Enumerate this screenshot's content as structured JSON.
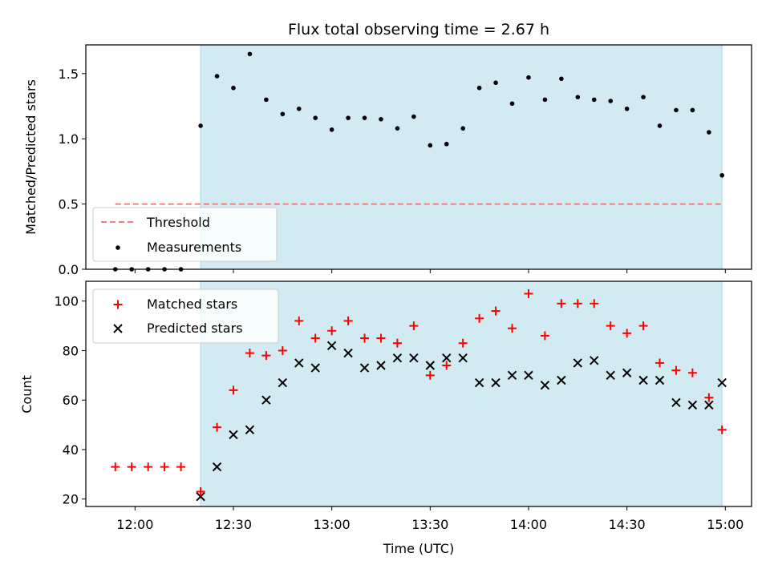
{
  "figure": {
    "title": "Flux total observing time = 2.67 h",
    "xlabel": "Time (UTC)"
  },
  "colors": {
    "shade": "#add8e6",
    "threshold": "#f08080",
    "matched": "#ff0000",
    "predicted": "#000000",
    "measurement": "#000000"
  },
  "chart_data": [
    {
      "type": "scatter",
      "name": "ratio-panel",
      "ylabel": "Matched/Predicted stars",
      "ylim": [
        0,
        1.72
      ],
      "yticks": [
        0.0,
        0.5,
        1.0,
        1.5
      ],
      "ytick_labels": [
        "0.0",
        "0.5",
        "1.0",
        "1.5"
      ],
      "shaded_region": {
        "x": [
          "12:20",
          "14:59"
        ]
      },
      "threshold": {
        "name": "Threshold",
        "value": 0.5,
        "x": [
          "11:54",
          "14:59"
        ]
      },
      "legend": {
        "placement": "lower-left",
        "entries": [
          "Threshold",
          "Measurements"
        ]
      },
      "series": [
        {
          "name": "Measurements",
          "x": [
            "11:54",
            "11:59",
            "12:04",
            "12:09",
            "12:14",
            "12:20",
            "12:25",
            "12:30",
            "12:35",
            "12:40",
            "12:45",
            "12:50",
            "12:55",
            "13:00",
            "13:05",
            "13:10",
            "13:15",
            "13:20",
            "13:25",
            "13:30",
            "13:35",
            "13:40",
            "13:45",
            "13:50",
            "13:55",
            "14:00",
            "14:05",
            "14:10",
            "14:15",
            "14:20",
            "14:25",
            "14:30",
            "14:35",
            "14:40",
            "14:45",
            "14:50",
            "14:55",
            "14:59"
          ],
          "y": [
            0,
            0,
            0,
            0,
            0,
            1.1,
            1.48,
            1.39,
            1.65,
            1.3,
            1.19,
            1.23,
            1.16,
            1.07,
            1.16,
            1.16,
            1.15,
            1.08,
            1.17,
            0.95,
            0.96,
            1.08,
            1.39,
            1.43,
            1.27,
            1.47,
            1.3,
            1.46,
            1.32,
            1.3,
            1.29,
            1.23,
            1.32,
            1.1,
            1.22,
            1.22,
            1.05,
            0.72
          ]
        }
      ]
    },
    {
      "type": "scatter",
      "name": "count-panel",
      "ylabel": "Count",
      "ylim": [
        17,
        108
      ],
      "yticks": [
        20,
        40,
        60,
        80,
        100
      ],
      "ytick_labels": [
        "20",
        "40",
        "60",
        "80",
        "100"
      ],
      "xlim": [
        "11:45",
        "15:08"
      ],
      "xticks": [
        "12:00",
        "12:30",
        "13:00",
        "13:30",
        "14:00",
        "14:30",
        "15:00"
      ],
      "xtick_labels": [
        "12:00",
        "12:30",
        "13:00",
        "13:30",
        "14:00",
        "14:30",
        "15:00"
      ],
      "shaded_region": {
        "x": [
          "12:20",
          "14:59"
        ]
      },
      "legend": {
        "placement": "upper-left",
        "entries": [
          "Matched stars",
          "Predicted stars"
        ]
      },
      "series": [
        {
          "name": "Matched stars",
          "marker": "plus",
          "x": [
            "11:54",
            "11:59",
            "12:04",
            "12:09",
            "12:14",
            "12:20",
            "12:25",
            "12:30",
            "12:35",
            "12:40",
            "12:45",
            "12:50",
            "12:55",
            "13:00",
            "13:05",
            "13:10",
            "13:15",
            "13:20",
            "13:25",
            "13:30",
            "13:35",
            "13:40",
            "13:45",
            "13:50",
            "13:55",
            "14:00",
            "14:05",
            "14:10",
            "14:15",
            "14:20",
            "14:25",
            "14:30",
            "14:35",
            "14:40",
            "14:45",
            "14:50",
            "14:55",
            "14:59"
          ],
          "y": [
            33,
            33,
            33,
            33,
            33,
            23,
            49,
            64,
            79,
            78,
            80,
            92,
            85,
            88,
            92,
            85,
            85,
            83,
            90,
            70,
            74,
            83,
            93,
            96,
            89,
            103,
            86,
            99,
            99,
            99,
            90,
            87,
            90,
            75,
            72,
            71,
            61,
            48
          ]
        },
        {
          "name": "Predicted stars",
          "marker": "x",
          "x": [
            "12:20",
            "12:25",
            "12:30",
            "12:35",
            "12:40",
            "12:45",
            "12:50",
            "12:55",
            "13:00",
            "13:05",
            "13:10",
            "13:15",
            "13:20",
            "13:25",
            "13:30",
            "13:35",
            "13:40",
            "13:45",
            "13:50",
            "13:55",
            "14:00",
            "14:05",
            "14:10",
            "14:15",
            "14:20",
            "14:25",
            "14:30",
            "14:35",
            "14:40",
            "14:45",
            "14:50",
            "14:55",
            "14:59"
          ],
          "y": [
            21,
            33,
            46,
            48,
            60,
            67,
            75,
            73,
            82,
            79,
            73,
            74,
            77,
            77,
            74,
            77,
            77,
            67,
            67,
            70,
            70,
            66,
            68,
            75,
            76,
            70,
            71,
            68,
            68,
            59,
            58,
            58,
            67
          ]
        }
      ]
    }
  ]
}
